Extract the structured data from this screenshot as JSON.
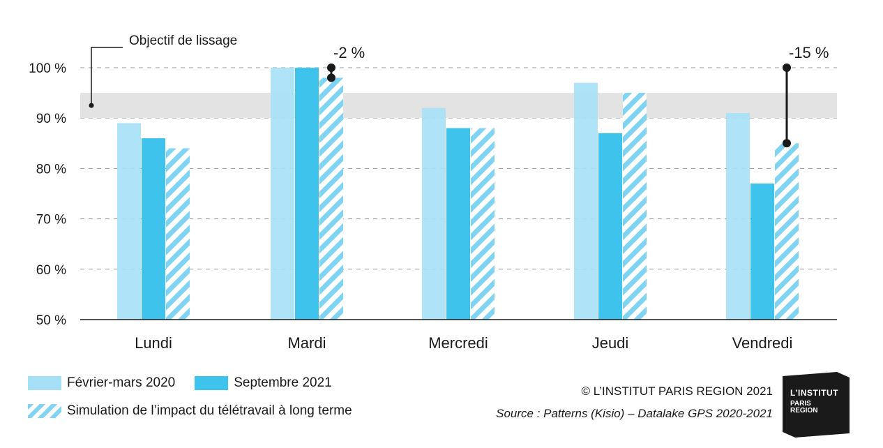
{
  "chart_data": {
    "type": "bar",
    "categories": [
      "Lundi",
      "Mardi",
      "Mercredi",
      "Jeudi",
      "Vendredi"
    ],
    "series": [
      {
        "name": "Février-mars 2020",
        "values": [
          89,
          100,
          92,
          97,
          91
        ],
        "color": "#a6e0f7"
      },
      {
        "name": "Septembre 2021",
        "values": [
          86,
          100,
          88,
          87,
          77
        ],
        "color": "#3ec3ec"
      },
      {
        "name": "Simulation de l’impact du télétravail à long terme",
        "values": [
          84,
          98,
          88,
          95,
          85
        ],
        "color": "#7fd3f3",
        "pattern": "hatched"
      }
    ],
    "ylim": [
      50,
      100
    ],
    "yticks": [
      50,
      60,
      70,
      80,
      90,
      100
    ],
    "ytick_labels": [
      "50 %",
      "60 %",
      "70 %",
      "80 %",
      "90 %",
      "100 %"
    ],
    "grid": "dashed horizontal",
    "band": {
      "label": "Objectif de lissage",
      "from": 90,
      "to": 95,
      "color": "#e3e3e3"
    },
    "annotations": [
      {
        "text": "-2 %",
        "category": "Mardi",
        "from": 100,
        "to": 98
      },
      {
        "text": "-15 %",
        "category": "Vendredi",
        "from": 100,
        "to": 85
      }
    ]
  },
  "legend": {
    "items": [
      {
        "label": "Février-mars 2020"
      },
      {
        "label": "Septembre 2021"
      },
      {
        "label": "Simulation de l’impact du télétravail à long terme"
      }
    ]
  },
  "credits": {
    "copyright": "© L’INSTITUT PARIS REGION 2021",
    "source": "Source : Patterns (Kisio) – Datalake GPS 2020-2021"
  },
  "logo": {
    "line1": "L’INSTITUT",
    "line2": "PARIS",
    "line3": "REGION"
  }
}
